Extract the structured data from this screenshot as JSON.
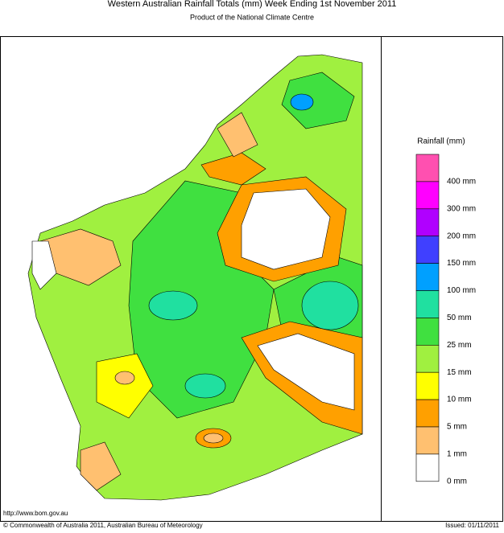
{
  "header": {
    "title": "Western Australian Rainfall Totals (mm)  Week Ending 1st November 2011",
    "subtitle": "Product of the National Climate Centre"
  },
  "legend": {
    "title": "Rainfall (mm)",
    "items": [
      {
        "label": "400 mm",
        "color": "#ff50b0"
      },
      {
        "label": "300 mm",
        "color": "#ff00ff"
      },
      {
        "label": "200 mm",
        "color": "#b000ff"
      },
      {
        "label": "150 mm",
        "color": "#4040ff"
      },
      {
        "label": "100 mm",
        "color": "#00a0ff"
      },
      {
        "label": "50 mm",
        "color": "#20e0a0"
      },
      {
        "label": "25 mm",
        "color": "#40e040"
      },
      {
        "label": "15 mm",
        "color": "#a0f040"
      },
      {
        "label": "10 mm",
        "color": "#ffff00"
      },
      {
        "label": "5 mm",
        "color": "#ffa000"
      },
      {
        "label": "1 mm",
        "color": "#ffc070"
      },
      {
        "label": "0 mm",
        "color": "#ffffff"
      }
    ]
  },
  "footer": {
    "url": "http://www.bom.gov.au",
    "copyright": "© Commonwealth of Australia 2011, Australian Bureau of Meteorology",
    "issued": "Issued: 01/11/2011"
  }
}
